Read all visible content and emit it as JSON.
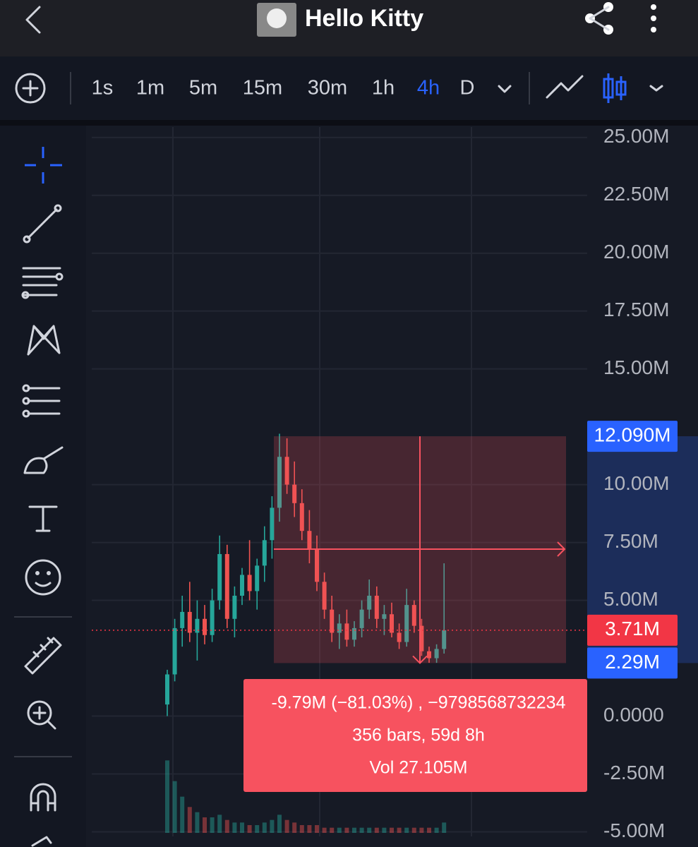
{
  "header": {
    "title": "Hello Kitty"
  },
  "toolbar": {
    "intervals": [
      "1s",
      "1m",
      "5m",
      "15m",
      "30m",
      "1h",
      "4h",
      "D"
    ],
    "active_interval": "4h"
  },
  "chart_data": {
    "type": "candlestick",
    "categories": [
      null,
      null,
      null,
      null,
      null,
      null,
      null,
      null,
      null,
      null,
      null,
      null,
      null,
      null,
      null,
      null,
      null,
      null,
      null,
      null,
      null,
      null,
      null,
      null,
      null,
      null,
      null,
      null,
      null,
      null,
      null,
      null,
      null,
      null,
      null,
      null,
      null,
      null
    ],
    "open": [
      0.5,
      1.8,
      3.8,
      4.5,
      3.6,
      4.2,
      3.5,
      5.0,
      7.0,
      4.2,
      5.2,
      6.1,
      5.4,
      6.5,
      7.6,
      9.0,
      11.2,
      10.0,
      9.2,
      8.0,
      7.2,
      5.8,
      4.6,
      3.6,
      4.0,
      3.3,
      3.8,
      4.6,
      5.2,
      4.2,
      4.4,
      3.6,
      3.2,
      4.8,
      3.9,
      2.8,
      2.5,
      2.9
    ],
    "high": [
      2.0,
      4.2,
      5.2,
      5.8,
      5.0,
      4.8,
      5.5,
      7.8,
      7.4,
      5.6,
      6.4,
      7.6,
      6.8,
      8.2,
      9.5,
      12.2,
      12.0,
      11.0,
      9.8,
      8.9,
      7.8,
      6.2,
      5.2,
      4.4,
      4.6,
      4.1,
      5.0,
      5.9,
      5.6,
      4.8,
      4.9,
      4.0,
      5.5,
      5.0,
      4.2,
      3.0,
      3.1,
      6.6
    ],
    "low": [
      0.0,
      1.5,
      3.0,
      3.2,
      2.4,
      3.1,
      3.2,
      4.6,
      3.8,
      3.4,
      4.8,
      5.0,
      4.6,
      5.8,
      6.8,
      8.4,
      9.6,
      8.6,
      7.6,
      6.6,
      5.4,
      4.2,
      3.2,
      2.9,
      3.0,
      3.0,
      3.4,
      4.2,
      3.8,
      3.5,
      3.4,
      2.9,
      3.0,
      3.6,
      2.6,
      2.3,
      2.3,
      2.7
    ],
    "close": [
      1.8,
      3.8,
      4.5,
      3.6,
      4.2,
      3.5,
      5.0,
      7.0,
      4.2,
      5.2,
      6.1,
      5.4,
      6.5,
      7.6,
      9.0,
      11.2,
      10.0,
      9.2,
      8.0,
      7.2,
      5.8,
      4.6,
      3.6,
      4.0,
      3.3,
      3.8,
      4.6,
      5.2,
      4.2,
      4.4,
      3.6,
      3.2,
      4.8,
      3.9,
      2.8,
      2.5,
      2.9,
      3.71
    ],
    "volume": [
      28,
      20,
      14,
      10,
      8,
      6,
      6,
      7,
      5,
      4,
      4,
      3,
      3,
      4,
      5,
      7,
      5,
      4,
      3,
      3,
      3,
      2,
      2,
      2,
      2,
      2,
      2,
      2,
      2,
      2,
      2,
      2,
      2,
      2,
      2,
      2,
      2,
      4
    ],
    "vlim": [
      0,
      30
    ],
    "up_color": "#26a69a",
    "down_color": "#ef5350",
    "ylim": [
      -5.2,
      25.45
    ],
    "yticks": [
      {
        "value": 25,
        "label": "25.00M"
      },
      {
        "value": 22.5,
        "label": "22.50M"
      },
      {
        "value": 20,
        "label": "20.00M"
      },
      {
        "value": 17.5,
        "label": "17.50M"
      },
      {
        "value": 15,
        "label": "15.00M"
      },
      {
        "value": 10,
        "label": "10.00M"
      },
      {
        "value": 7.5,
        "label": "7.50M"
      },
      {
        "value": 5,
        "label": "5.00M"
      },
      {
        "value": 0,
        "label": "0.0000"
      },
      {
        "value": -2.5,
        "label": "-2.50M"
      },
      {
        "value": -5,
        "label": "-5.00M"
      }
    ],
    "grid": true,
    "price_labels": [
      {
        "value": 12.09,
        "label": "12.090M",
        "color": "#2962ff"
      },
      {
        "value": 3.71,
        "label": "3.71M",
        "color": "#f23645"
      },
      {
        "value": 2.29,
        "label": "2.29M",
        "color": "#2962ff"
      }
    ],
    "measure": {
      "lines": [
        "-9.79M (−81.03%) , −9798568732234",
        "356 bars, 59d 8h",
        "Vol 27.105M"
      ],
      "color": "#f7525f"
    }
  }
}
